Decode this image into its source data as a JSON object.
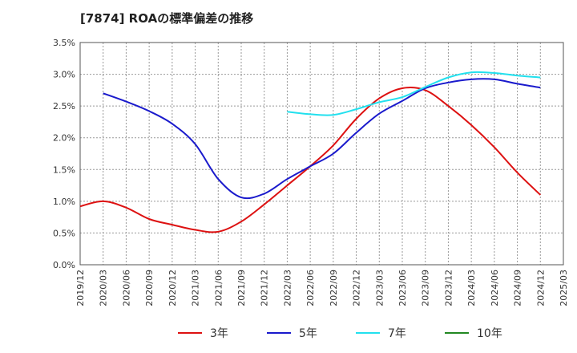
{
  "chart_data": {
    "type": "line",
    "title": "[7874]  ROAの標準偏差の推移",
    "xlabel": "",
    "ylabel": "",
    "ylim": [
      0,
      3.5
    ],
    "y_ticks": [
      "0.0%",
      "0.5%",
      "1.0%",
      "1.5%",
      "2.0%",
      "2.5%",
      "3.0%",
      "3.5%"
    ],
    "x_tick_labels": [
      "2019/12",
      "2020/03",
      "2020/06",
      "2020/09",
      "2020/12",
      "2021/03",
      "2021/06",
      "2021/09",
      "2021/12",
      "2022/03",
      "2022/06",
      "2022/09",
      "2022/12",
      "2023/03",
      "2023/06",
      "2023/09",
      "2023/12",
      "2024/03",
      "2024/06",
      "2024/09",
      "2024/12",
      "2025/03"
    ],
    "grid": true,
    "legend_position": "bottom",
    "series": [
      {
        "name": "3年",
        "color": "#dd1111",
        "points": [
          [
            "2019/12",
            0.92
          ],
          [
            "2020/03",
            1.0
          ],
          [
            "2020/06",
            0.9
          ],
          [
            "2020/09",
            0.72
          ],
          [
            "2020/12",
            0.63
          ],
          [
            "2021/03",
            0.55
          ],
          [
            "2021/06",
            0.52
          ],
          [
            "2021/09",
            0.68
          ],
          [
            "2021/12",
            0.95
          ],
          [
            "2022/03",
            1.25
          ],
          [
            "2022/06",
            1.55
          ],
          [
            "2022/09",
            1.88
          ],
          [
            "2022/12",
            2.3
          ],
          [
            "2023/03",
            2.62
          ],
          [
            "2023/06",
            2.78
          ],
          [
            "2023/09",
            2.75
          ],
          [
            "2023/12",
            2.5
          ],
          [
            "2024/03",
            2.2
          ],
          [
            "2024/06",
            1.85
          ],
          [
            "2024/09",
            1.45
          ],
          [
            "2024/12",
            1.1
          ]
        ]
      },
      {
        "name": "5年",
        "color": "#1a1acc",
        "points": [
          [
            "2020/03",
            2.7
          ],
          [
            "2020/06",
            2.57
          ],
          [
            "2020/09",
            2.42
          ],
          [
            "2020/12",
            2.22
          ],
          [
            "2021/03",
            1.9
          ],
          [
            "2021/06",
            1.35
          ],
          [
            "2021/09",
            1.06
          ],
          [
            "2021/12",
            1.12
          ],
          [
            "2022/03",
            1.35
          ],
          [
            "2022/06",
            1.55
          ],
          [
            "2022/09",
            1.75
          ],
          [
            "2022/12",
            2.08
          ],
          [
            "2023/03",
            2.38
          ],
          [
            "2023/06",
            2.58
          ],
          [
            "2023/09",
            2.78
          ],
          [
            "2023/12",
            2.87
          ],
          [
            "2024/03",
            2.92
          ],
          [
            "2024/06",
            2.92
          ],
          [
            "2024/09",
            2.85
          ],
          [
            "2024/12",
            2.79
          ]
        ]
      },
      {
        "name": "7年",
        "color": "#22e0ee",
        "points": [
          [
            "2022/03",
            2.41
          ],
          [
            "2022/06",
            2.37
          ],
          [
            "2022/09",
            2.36
          ],
          [
            "2022/12",
            2.45
          ],
          [
            "2023/03",
            2.56
          ],
          [
            "2023/06",
            2.64
          ],
          [
            "2023/09",
            2.8
          ],
          [
            "2023/12",
            2.95
          ],
          [
            "2024/03",
            3.03
          ],
          [
            "2024/06",
            3.02
          ],
          [
            "2024/09",
            2.98
          ],
          [
            "2024/12",
            2.95
          ]
        ]
      },
      {
        "name": "10年",
        "color": "#228822",
        "points": []
      }
    ]
  }
}
